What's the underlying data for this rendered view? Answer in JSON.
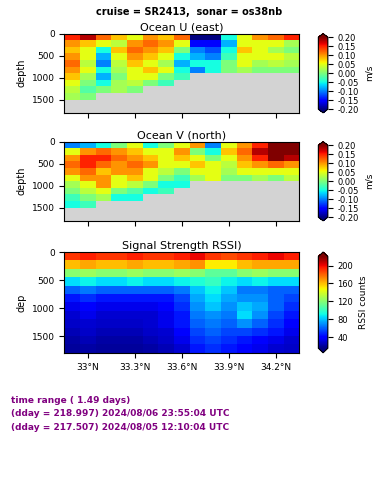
{
  "title": "cruise = SR2413,  sonar = os38nb",
  "footer": [
    "time range ( 1.49 days)",
    "(dday = 218.997) 2024/08/06 23:55:04 UTC",
    "(dday = 217.507) 2024/08/05 12:10:04 UTC"
  ],
  "chart_data": [
    {
      "type": "heatmap",
      "title": "Ocean U (east)",
      "y_label": "depth",
      "tick_labels": "y",
      "x": [
        32.9,
        33.0,
        33.1,
        33.2,
        33.3,
        33.4,
        33.5,
        33.6,
        33.7,
        33.8,
        33.9,
        34.0,
        34.1,
        34.2,
        34.3
      ],
      "y": [
        75,
        225,
        375,
        525,
        675,
        825,
        975,
        1125,
        1275,
        1425,
        1575,
        1725
      ],
      "xlim": [
        32.85,
        34.35
      ],
      "ylim": [
        0,
        1800
      ],
      "xticks": [
        {
          "value": 33.0,
          "label": "33°N"
        },
        {
          "value": 33.3,
          "label": "33.3°N"
        },
        {
          "value": 33.6,
          "label": "33.6°N"
        },
        {
          "value": 33.9,
          "label": "33.9°N"
        },
        {
          "value": 34.2,
          "label": "34.2°N"
        }
      ],
      "yticks": [
        0,
        500,
        1000,
        1500
      ],
      "cells": [
        [
          0.15,
          0.18,
          0.12,
          0.08,
          0.05,
          0.1,
          0.08,
          0.12,
          -0.2,
          -0.2,
          -0.05,
          0.05,
          0.1,
          0.12,
          0.15
        ],
        [
          0.1,
          0.08,
          0.05,
          0.03,
          0.1,
          0.12,
          0.1,
          0.05,
          -0.15,
          -0.15,
          -0.08,
          0.05,
          0.05,
          0.05,
          0.02
        ],
        [
          0.08,
          0.05,
          -0.05,
          0.08,
          0.12,
          0.1,
          0.08,
          0.0,
          -0.1,
          -0.12,
          -0.05,
          0.08,
          0.05,
          0.02,
          0.0
        ],
        [
          0.1,
          0.05,
          -0.08,
          0.05,
          0.1,
          0.08,
          0.05,
          -0.05,
          -0.08,
          -0.1,
          -0.03,
          0.05,
          0.05,
          0.05,
          0.03
        ],
        [
          0.12,
          0.03,
          -0.1,
          0.03,
          0.08,
          0.05,
          0.02,
          -0.08,
          -0.05,
          -0.05,
          0.0,
          0.05,
          0.02,
          0.03,
          0.02
        ],
        [
          0.1,
          0.05,
          -0.05,
          0.02,
          0.05,
          0.08,
          0.05,
          -0.05,
          -0.1,
          -0.05,
          0.0,
          0.02,
          0.0,
          0.0,
          0.0
        ],
        [
          0.08,
          0.02,
          -0.08,
          0.0,
          0.05,
          0.05,
          0.0,
          -0.03,
          null,
          null,
          null,
          null,
          null,
          null,
          null
        ],
        [
          0.05,
          0.0,
          -0.05,
          0.02,
          0.03,
          0.0,
          -0.03,
          null,
          null,
          null,
          null,
          null,
          null,
          null,
          null
        ],
        [
          0.03,
          -0.02,
          0.0,
          0.02,
          0.0,
          null,
          null,
          null,
          null,
          null,
          null,
          null,
          null,
          null,
          null
        ],
        [
          0.02,
          0.0,
          null,
          null,
          null,
          null,
          null,
          null,
          null,
          null,
          null,
          null,
          null,
          null,
          null
        ],
        [
          null,
          null,
          null,
          null,
          null,
          null,
          null,
          null,
          null,
          null,
          null,
          null,
          null,
          null,
          null
        ],
        [
          null,
          null,
          null,
          null,
          null,
          null,
          null,
          null,
          null,
          null,
          null,
          null,
          null,
          null,
          null
        ]
      ],
      "colorbar_label": "m/s",
      "colorbar_range": [
        -0.2,
        0.2
      ],
      "colorbar_ticks": [
        {
          "value": -0.2,
          "label": "-0.20"
        },
        {
          "value": -0.15,
          "label": "-0.15"
        },
        {
          "value": -0.1,
          "label": "-0.10"
        },
        {
          "value": -0.05,
          "label": "-0.05"
        },
        {
          "value": 0.0,
          "label": "0.00"
        },
        {
          "value": 0.05,
          "label": "0.05"
        },
        {
          "value": 0.1,
          "label": "0.10"
        },
        {
          "value": 0.15,
          "label": "0.15"
        },
        {
          "value": 0.2,
          "label": "0.20"
        }
      ]
    },
    {
      "type": "heatmap",
      "title": "Ocean V (north)",
      "y_label": "depth",
      "tick_labels": "y",
      "x": [
        32.9,
        33.0,
        33.1,
        33.2,
        33.3,
        33.4,
        33.5,
        33.6,
        33.7,
        33.8,
        33.9,
        34.0,
        34.1,
        34.2,
        34.3
      ],
      "y": [
        75,
        225,
        375,
        525,
        675,
        825,
        975,
        1125,
        1275,
        1425,
        1575,
        1725
      ],
      "xlim": [
        32.85,
        34.35
      ],
      "ylim": [
        0,
        1800
      ],
      "xticks": [
        {
          "value": 33.0,
          "label": "33°N"
        },
        {
          "value": 33.3,
          "label": "33.3°N"
        },
        {
          "value": 33.6,
          "label": "33.6°N"
        },
        {
          "value": 33.9,
          "label": "33.9°N"
        },
        {
          "value": 34.2,
          "label": "34.2°N"
        }
      ],
      "yticks": [
        0,
        500,
        1000,
        1500
      ],
      "cells": [
        [
          -0.1,
          -0.08,
          -0.05,
          0.0,
          0.05,
          -0.05,
          0.0,
          0.05,
          0.1,
          -0.1,
          0.05,
          0.1,
          0.15,
          0.2,
          0.2
        ],
        [
          0.05,
          0.1,
          0.12,
          0.1,
          0.08,
          0.05,
          0.05,
          0.1,
          0.0,
          -0.05,
          0.08,
          0.12,
          0.18,
          0.2,
          0.2
        ],
        [
          0.1,
          0.15,
          0.15,
          0.12,
          0.1,
          0.08,
          0.05,
          0.08,
          0.05,
          0.0,
          0.05,
          0.1,
          0.15,
          0.2,
          0.18
        ],
        [
          0.12,
          0.15,
          0.12,
          0.1,
          0.12,
          0.1,
          0.05,
          0.05,
          0.08,
          0.05,
          0.03,
          0.08,
          0.1,
          0.12,
          0.1
        ],
        [
          0.1,
          0.12,
          0.08,
          0.1,
          0.1,
          0.05,
          0.03,
          0.0,
          0.05,
          0.05,
          0.02,
          0.05,
          0.05,
          0.05,
          0.05
        ],
        [
          0.05,
          0.1,
          0.1,
          0.05,
          0.08,
          0.05,
          0.0,
          -0.03,
          0.02,
          0.05,
          0.0,
          0.0,
          0.02,
          0.0,
          0.03
        ],
        [
          0.02,
          0.05,
          0.1,
          0.05,
          0.03,
          0.0,
          -0.05,
          -0.05,
          null,
          null,
          null,
          null,
          null,
          null,
          null
        ],
        [
          0.0,
          0.03,
          0.05,
          0.0,
          -0.02,
          -0.05,
          -0.03,
          null,
          null,
          null,
          null,
          null,
          null,
          null,
          null
        ],
        [
          -0.03,
          0.0,
          0.02,
          -0.05,
          -0.05,
          null,
          null,
          null,
          null,
          null,
          null,
          null,
          null,
          null,
          null
        ],
        [
          -0.05,
          -0.03,
          null,
          null,
          null,
          null,
          null,
          null,
          null,
          null,
          null,
          null,
          null,
          null,
          null
        ],
        [
          null,
          null,
          null,
          null,
          null,
          null,
          null,
          null,
          null,
          null,
          null,
          null,
          null,
          null,
          null
        ],
        [
          null,
          null,
          null,
          null,
          null,
          null,
          null,
          null,
          null,
          null,
          null,
          null,
          null,
          null,
          null
        ]
      ],
      "colorbar_label": "m/s",
      "colorbar_range": [
        -0.2,
        0.2
      ],
      "colorbar_ticks": [
        {
          "value": -0.2,
          "label": "-0.20"
        },
        {
          "value": -0.15,
          "label": "-0.15"
        },
        {
          "value": -0.1,
          "label": "-0.10"
        },
        {
          "value": -0.05,
          "label": "-0.05"
        },
        {
          "value": 0.0,
          "label": "0.00"
        },
        {
          "value": 0.05,
          "label": "0.05"
        },
        {
          "value": 0.1,
          "label": "0.10"
        },
        {
          "value": 0.15,
          "label": "0.15"
        },
        {
          "value": 0.2,
          "label": "0.20"
        }
      ]
    },
    {
      "type": "heatmap",
      "title": "Signal Strength RSSI)",
      "y_label": "dep",
      "x": [
        32.9,
        33.0,
        33.1,
        33.2,
        33.3,
        33.4,
        33.5,
        33.6,
        33.7,
        33.8,
        33.9,
        34.0,
        34.1,
        34.2,
        34.3
      ],
      "y": [
        75,
        225,
        375,
        525,
        675,
        825,
        975,
        1125,
        1275,
        1425,
        1575,
        1725
      ],
      "xlim": [
        32.85,
        34.35
      ],
      "ylim": [
        0,
        1800
      ],
      "xticks": [
        {
          "value": 33.0,
          "label": "33°N"
        },
        {
          "value": 33.3,
          "label": "33.3°N"
        },
        {
          "value": 33.6,
          "label": "33.6°N"
        },
        {
          "value": 33.9,
          "label": "33.9°N"
        },
        {
          "value": 34.2,
          "label": "34.2°N"
        }
      ],
      "yticks": [
        0,
        500,
        1000,
        1500
      ],
      "cells": [
        [
          190,
          195,
          190,
          190,
          195,
          190,
          190,
          195,
          200,
          190,
          185,
          190,
          195,
          200,
          195
        ],
        [
          160,
          165,
          160,
          160,
          165,
          160,
          160,
          165,
          170,
          150,
          150,
          160,
          165,
          165,
          165
        ],
        [
          120,
          125,
          120,
          120,
          125,
          120,
          120,
          125,
          120,
          110,
          110,
          120,
          125,
          120,
          120
        ],
        [
          85,
          90,
          85,
          85,
          90,
          85,
          85,
          90,
          95,
          100,
          90,
          85,
          90,
          85,
          85
        ],
        [
          60,
          65,
          60,
          60,
          60,
          60,
          60,
          65,
          80,
          90,
          80,
          65,
          65,
          60,
          60
        ],
        [
          45,
          50,
          45,
          45,
          45,
          45,
          45,
          55,
          75,
          85,
          75,
          70,
          70,
          60,
          55
        ],
        [
          35,
          40,
          35,
          35,
          35,
          35,
          40,
          50,
          70,
          80,
          70,
          80,
          75,
          60,
          50
        ],
        [
          30,
          35,
          30,
          30,
          30,
          30,
          35,
          45,
          65,
          70,
          65,
          85,
          70,
          55,
          45
        ],
        [
          28,
          30,
          28,
          28,
          28,
          30,
          35,
          45,
          60,
          65,
          60,
          70,
          60,
          50,
          40
        ],
        [
          25,
          28,
          25,
          25,
          25,
          28,
          30,
          40,
          55,
          60,
          55,
          55,
          50,
          45,
          35
        ],
        [
          22,
          25,
          22,
          22,
          22,
          25,
          28,
          35,
          50,
          55,
          50,
          45,
          40,
          35,
          30
        ],
        [
          20,
          22,
          20,
          20,
          20,
          22,
          25,
          30,
          45,
          50,
          45,
          40,
          35,
          30,
          28
        ]
      ],
      "colorbar_label": "RSSI counts",
      "colorbar_range": [
        15,
        220
      ],
      "colorbar_ticks": [
        40,
        80,
        120,
        160,
        200
      ]
    }
  ]
}
